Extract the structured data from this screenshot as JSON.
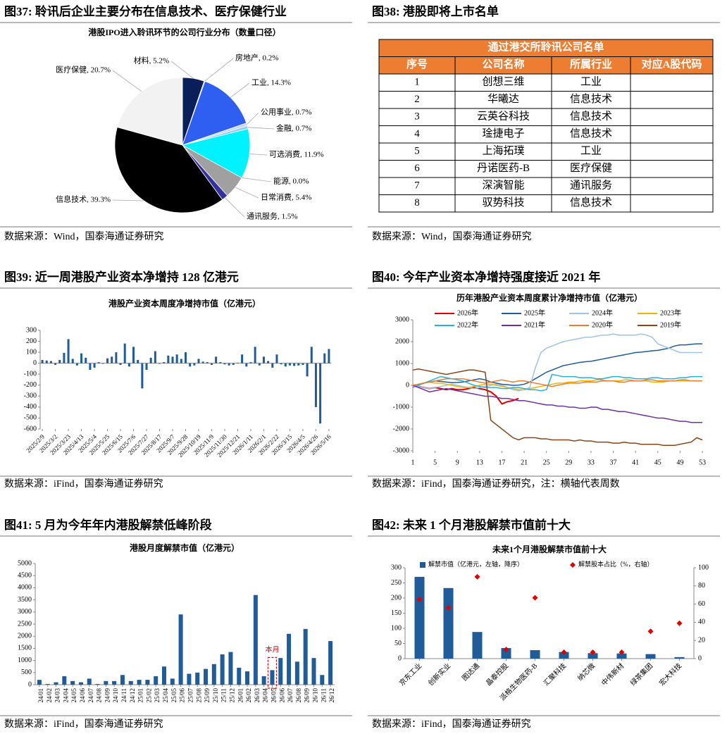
{
  "figures": [
    {
      "caption": "图37:  聆讯后企业主要分布在信息技术、医疗保健行业",
      "source": "数据来源：Wind，国泰海通证券研究"
    },
    {
      "caption": "图38:  港股即将上市名单",
      "source": "数据来源：Wind，国泰海通证券研究"
    },
    {
      "caption": "图39:  近一周港股产业资本净增持 128 亿港元",
      "source": "数据来源：iFind，国泰海通证券研究"
    },
    {
      "caption": "图40:  今年产业资本净增持强度接近 2021 年",
      "source": "数据来源：iFind，国泰海通证券研究，注：横轴代表周数"
    },
    {
      "caption": "图41:  5 月为今年年内港股解禁低峰阶段",
      "source": "数据来源：iFind，国泰海通证券研究"
    },
    {
      "caption": "图42:  未来 1 个月港股解禁市值前十大",
      "source": "数据来源：iFind，国泰海通证券研究"
    }
  ],
  "chart_data": [
    {
      "type": "pie",
      "title": "港股IPO进入聆讯环节的公司行业分布（数量口径）",
      "categories": [
        "材料",
        "房地产",
        "工业",
        "公用事业",
        "金融",
        "可选消费",
        "能源",
        "日常消费",
        "通讯服务",
        "信息技术",
        "医疗保健"
      ],
      "values": [
        5.2,
        0.2,
        14.3,
        0.7,
        0.7,
        11.9,
        0.0,
        5.4,
        1.5,
        39.3,
        20.7
      ],
      "value_labels": [
        "5.2%",
        "0.2%",
        "14.3%",
        "0.7%",
        "0.7%",
        "11.9%",
        "0.0%",
        "5.4%",
        "1.5%",
        "39.3%",
        "20.7%"
      ],
      "colors": [
        "#0a1e5a",
        "#8080ff",
        "#2e5ff0",
        "#c8d8ff",
        "#8fd0ff",
        "#00f2ff",
        "#cccccc",
        "#a0a0a0",
        "#3232a0",
        "#000000",
        "#f2f2f2"
      ]
    },
    {
      "type": "bar",
      "title": "港股产业资本周度净增持市值（亿港元）",
      "categories": [
        "2025/2/9",
        null,
        null,
        "2025/3/2",
        null,
        null,
        "2025/3/23",
        null,
        null,
        "2025/4/13",
        null,
        null,
        "2025/5/4",
        null,
        null,
        "2025/5/25",
        null,
        null,
        "2025/6/15",
        null,
        null,
        "2025/7/6",
        null,
        null,
        "2025/7/27",
        null,
        null,
        "2025/8/17",
        null,
        null,
        "2025/9/7",
        null,
        null,
        "2025/9/28",
        null,
        null,
        "2025/10/19",
        null,
        null,
        "2025/11/9",
        null,
        null,
        "2025/11/30",
        null,
        null,
        "2025/12/21",
        null,
        null,
        "2026/1/11",
        null,
        null,
        "2026/2/1",
        null,
        null,
        "2026/2/22",
        null,
        null,
        "2026/3/15",
        null,
        null,
        "2026/4/5",
        null,
        null,
        "2026/4/26",
        null,
        null,
        "2026/5/16"
      ],
      "values": [
        30,
        25,
        20,
        -15,
        30,
        95,
        220,
        40,
        -20,
        90,
        50,
        -60,
        -40,
        10,
        -5,
        45,
        60,
        100,
        -15,
        180,
        -30,
        150,
        30,
        -230,
        -60,
        50,
        110,
        -5,
        10,
        70,
        60,
        80,
        40,
        100,
        -30,
        -20,
        40,
        15,
        10,
        -15,
        60,
        10,
        -10,
        -20,
        -15,
        5,
        80,
        -30,
        10,
        150,
        -20,
        60,
        20,
        -40,
        80,
        -10,
        -30,
        -20,
        -25,
        -20,
        -15,
        -120,
        150,
        -400,
        -550,
        90,
        130
      ],
      "color": "#1f5c99",
      "ylim": [
        -600,
        300
      ],
      "yticks": [
        -600,
        -500,
        -400,
        -300,
        -200,
        -100,
        0,
        100,
        200,
        300
      ]
    },
    {
      "type": "line",
      "title": "历年港股产业资本周度累计净增持市值（亿港元）",
      "x": [
        1,
        2,
        3,
        4,
        5,
        6,
        7,
        8,
        9,
        10,
        11,
        12,
        13,
        14,
        15,
        16,
        17,
        18,
        19,
        20,
        21,
        22,
        23,
        24,
        25,
        26,
        27,
        28,
        29,
        30,
        31,
        32,
        33,
        34,
        35,
        36,
        37,
        38,
        39,
        40,
        41,
        42,
        43,
        44,
        45,
        46,
        47,
        48,
        49,
        50,
        51,
        52,
        53
      ],
      "xlim": [
        1,
        53
      ],
      "xticks": [
        1,
        5,
        9,
        13,
        17,
        21,
        25,
        29,
        33,
        37,
        41,
        45,
        49,
        53
      ],
      "ylim": [
        -3000,
        3000
      ],
      "yticks": [
        -3000,
        -2000,
        -1000,
        0,
        1000,
        2000,
        3000
      ],
      "series": [
        {
          "name": "2026年",
          "color": "#e00000",
          "values": [
            0,
            -50,
            -100,
            -150,
            -100,
            -150,
            -200,
            -150,
            -200,
            -200,
            -150,
            -100,
            -150,
            -200,
            -300,
            -500,
            -850,
            -750,
            -700,
            -600,
            null,
            null,
            null,
            null,
            null,
            null,
            null,
            null,
            null,
            null,
            null,
            null,
            null,
            null,
            null,
            null,
            null,
            null,
            null,
            null,
            null,
            null,
            null,
            null,
            null,
            null,
            null,
            null,
            null,
            null,
            null,
            null,
            null
          ]
        },
        {
          "name": "2025年",
          "color": "#1f5c99",
          "values": [
            0,
            50,
            100,
            150,
            200,
            180,
            150,
            120,
            130,
            150,
            200,
            250,
            300,
            250,
            150,
            100,
            50,
            30,
            0,
            10,
            50,
            150,
            300,
            450,
            600,
            700,
            800,
            900,
            950,
            1000,
            1050,
            1080,
            1100,
            1150,
            1200,
            1250,
            1300,
            1350,
            1400,
            1450,
            1500,
            1520,
            1550,
            1580,
            1600,
            1650,
            1700,
            1800,
            1850,
            1850,
            1880,
            1900,
            1900
          ]
        },
        {
          "name": "2024年",
          "color": "#9dc3e6",
          "values": [
            0,
            -50,
            -100,
            -150,
            -100,
            -50,
            0,
            50,
            0,
            -50,
            -100,
            -150,
            -100,
            -50,
            0,
            50,
            0,
            -100,
            -200,
            -250,
            -200,
            -100,
            800,
            1500,
            1700,
            1800,
            1900,
            2000,
            2050,
            2100,
            2150,
            2200,
            2200,
            2250,
            2300,
            2300,
            2350,
            2300,
            2300,
            2300,
            2300,
            2350,
            2300,
            2200,
            1900,
            1800,
            1700,
            1600,
            1500,
            1500,
            1500,
            1500,
            1500
          ]
        },
        {
          "name": "2023年",
          "color": "#f0b400",
          "values": [
            0,
            50,
            100,
            150,
            100,
            100,
            50,
            0,
            -50,
            -100,
            -100,
            -50,
            0,
            50,
            50,
            0,
            -50,
            -100,
            -150,
            -200,
            -200,
            -150,
            -100,
            -50,
            0,
            50,
            100,
            100,
            150,
            150,
            200,
            200,
            200,
            250,
            250,
            200,
            200,
            200,
            250,
            250,
            200,
            200,
            200,
            150,
            150,
            150,
            200,
            200,
            200,
            200,
            200,
            200,
            200
          ]
        },
        {
          "name": "2022年",
          "color": "#27b0e0",
          "values": [
            -100,
            0,
            100,
            200,
            300,
            400,
            350,
            300,
            250,
            200,
            100,
            0,
            -50,
            -100,
            -100,
            -100,
            -150,
            -150,
            -100,
            -100,
            -150,
            -200,
            -200,
            -250,
            -200,
            500,
            450,
            400,
            400,
            400,
            350,
            350,
            350,
            300,
            300,
            350,
            400,
            400,
            350,
            350,
            300,
            300,
            300,
            350,
            350,
            300,
            300,
            300,
            350,
            350,
            400,
            400,
            400
          ]
        },
        {
          "name": "2021年",
          "color": "#7030a0",
          "values": [
            0,
            -100,
            -200,
            -300,
            -250,
            -200,
            -150,
            -200,
            -250,
            -300,
            -350,
            -400,
            -450,
            -500,
            -500,
            -550,
            -600,
            -600,
            -650,
            -700,
            -700,
            -750,
            -800,
            -850,
            -900,
            -900,
            -950,
            -950,
            -1000,
            -1000,
            -1050,
            -1050,
            -1000,
            -1000,
            -1100,
            -1100,
            -1150,
            -1200,
            -1200,
            -1250,
            -1300,
            -1350,
            -1400,
            -1450,
            -1500,
            -1500,
            -1550,
            -1600,
            -1650,
            -1650,
            -1700,
            -1700,
            -1700
          ]
        },
        {
          "name": "2020年",
          "color": "#ed7d31",
          "values": [
            0,
            50,
            100,
            150,
            200,
            250,
            300,
            300,
            300,
            300,
            250,
            200,
            150,
            100,
            150,
            200,
            250,
            200,
            150,
            200,
            200,
            150,
            100,
            50,
            0,
            -50,
            0,
            50,
            100,
            100,
            100,
            150,
            150,
            150,
            200,
            200,
            200,
            150,
            150,
            200,
            200,
            200,
            250,
            250,
            200,
            200,
            200,
            200,
            250,
            250,
            200,
            200,
            200
          ]
        },
        {
          "name": "2019年",
          "color": "#8b4513",
          "values": [
            700,
            750,
            700,
            650,
            600,
            550,
            500,
            550,
            600,
            650,
            700,
            700,
            650,
            600,
            -1600,
            -1800,
            -2000,
            -2200,
            -2400,
            -2500,
            -2400,
            -2400,
            -2400,
            -2450,
            -2450,
            -2500,
            -2500,
            -2500,
            -2500,
            -2550,
            -2500,
            -2550,
            -2550,
            -2600,
            -2600,
            -2600,
            -2650,
            -2650,
            -2600,
            -2650,
            -2650,
            -2700,
            -2700,
            -2700,
            -2700,
            -2750,
            -2750,
            -2750,
            -2700,
            -2650,
            -2600,
            -2400,
            -2500
          ]
        }
      ]
    },
    {
      "type": "bar",
      "title": "港股月度解禁市值（亿港元）",
      "categories": [
        "24/01",
        "24/02",
        "24/03",
        "24/04",
        "24/05",
        "24/06",
        "24/07",
        "24/08",
        "24/09",
        "24/10",
        "24/11",
        "24/12",
        "25/01",
        "25/02",
        "25/03",
        "25/04",
        "25/05",
        "25/06",
        "25/07",
        "25/08",
        "25/09",
        "25/10",
        "25/11",
        "25/12",
        "26/01",
        "26/02",
        "26/03",
        "26/04",
        "26/05",
        "26/06",
        "26/07",
        "26/08",
        "26/09",
        "26/10",
        "26/11",
        "26/12"
      ],
      "values": [
        200,
        30,
        100,
        350,
        150,
        100,
        250,
        30,
        150,
        150,
        400,
        150,
        200,
        200,
        350,
        750,
        250,
        2900,
        450,
        500,
        650,
        850,
        1250,
        1350,
        700,
        550,
        3700,
        350,
        600,
        1100,
        2100,
        950,
        2300,
        1100,
        400,
        1800
      ],
      "color": "#1f5c99",
      "ylim": [
        0,
        5000
      ],
      "yticks": [
        0,
        500,
        1000,
        1500,
        2000,
        2500,
        3000,
        3500,
        4000,
        4500,
        5000
      ],
      "annotation": {
        "text": "本月",
        "at": "26/05"
      }
    },
    {
      "type": "bar",
      "title": "未来1个月港股解禁市值前十大",
      "categories": [
        "京东工业",
        "创新实业",
        "图达通",
        "晶泰控股",
        "派格生物医药-B",
        "汇聚科技",
        "纳芯微",
        "中伟新材",
        "绿茶集团",
        "宏大科技"
      ],
      "series": [
        {
          "name": "解禁市值（亿港元，左轴，降序）",
          "color": "#1f5c99",
          "values": [
            270,
            233,
            88,
            35,
            28,
            22,
            18,
            17,
            15,
            5
          ]
        },
        {
          "name": "解禁股本占比（%，右轴）",
          "color": "#e00000",
          "type": "scatter",
          "axis": "y2",
          "values": [
            65,
            56,
            90,
            10,
            67,
            7,
            7,
            7,
            30,
            39
          ]
        }
      ],
      "ylim": [
        0,
        300
      ],
      "yticks": [
        0,
        50,
        100,
        150,
        200,
        250,
        300
      ],
      "y2lim": [
        0,
        100
      ],
      "y2ticks": [
        0,
        20,
        40,
        60,
        80,
        100
      ]
    }
  ],
  "table": {
    "title": "通过港交所聆讯公司名单",
    "header": [
      "序号",
      "公司名称",
      "所属行业",
      "对应A股代码"
    ],
    "rows": [
      [
        1,
        "创想三维",
        "工业"
      ],
      [
        2,
        "华曦达",
        "信息技术"
      ],
      [
        3,
        "云英谷科技",
        "信息技术"
      ],
      [
        4,
        "琻捷电子",
        "信息技术"
      ],
      [
        5,
        "上海拓璞",
        "工业"
      ],
      [
        6,
        "丹诺医药-B",
        "医疗保健"
      ],
      [
        7,
        "深演智能",
        "通讯服务"
      ],
      [
        8,
        "驭势科技",
        "信息技术"
      ]
    ]
  }
}
